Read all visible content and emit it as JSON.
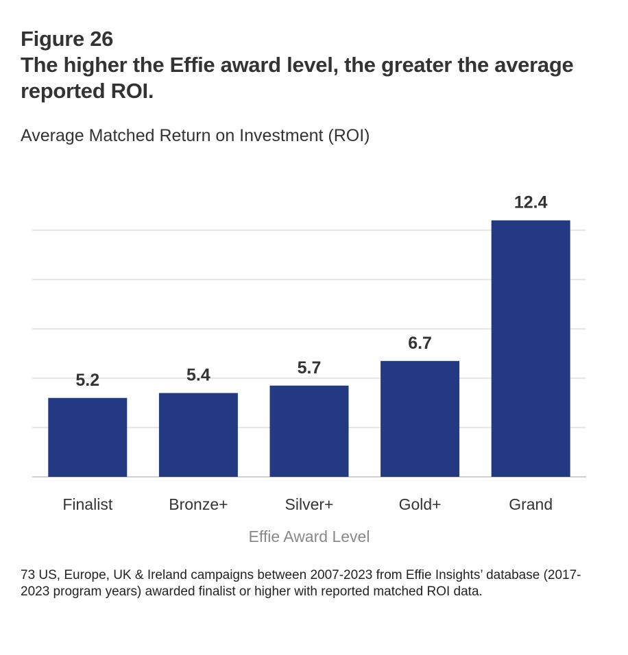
{
  "figure_label": "Figure 26",
  "title": "The higher the Effie award level, the greater the average reported ROI.",
  "subtitle": "Average Matched Return on Investment (ROI)",
  "footnote": "73 US, Europe, UK & Ireland campaigns between 2007-2023 from Effie Insights’ database (2017-2023 program years) awarded finalist or higher with reported matched ROI data.",
  "chart_data": {
    "type": "bar",
    "title": "Average Matched Return on Investment (ROI)",
    "xlabel": "Effie Award Level",
    "ylabel": "",
    "categories": [
      "Finalist",
      "Bronze+",
      "Silver+",
      "Gold+",
      "Grand"
    ],
    "values": [
      5.2,
      5.4,
      5.7,
      6.7,
      12.4
    ],
    "data_labels": [
      "5.2",
      "5.4",
      "5.7",
      "6.7",
      "12.4"
    ],
    "ylim": [
      2,
      12.8
    ],
    "gridlines": [
      2,
      4,
      6,
      8,
      10,
      12
    ],
    "grid": true,
    "y_tick_labels_shown": false,
    "bar_color": "#233a82",
    "grid_color": "#e6e6e6"
  }
}
